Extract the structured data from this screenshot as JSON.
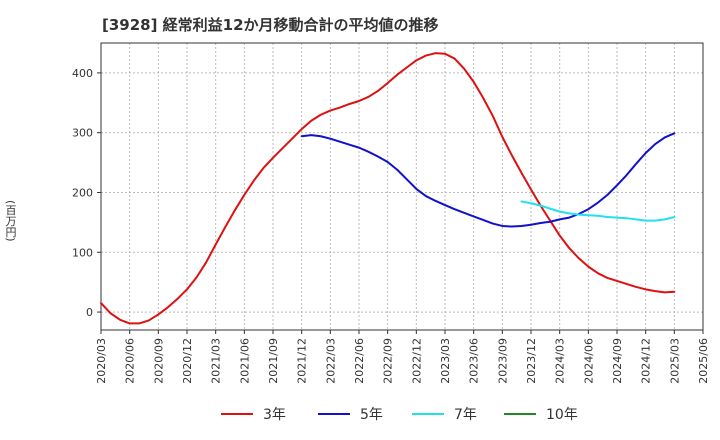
{
  "title": "[3928]  経常利益12か月移動合計の平均値の推移",
  "chart_data": {
    "type": "line",
    "ylabel": "(百万円)",
    "ylim": [
      -30,
      450
    ],
    "yticks": [
      0,
      100,
      200,
      300,
      400
    ],
    "xlim": [
      "2020-03",
      "2025-06"
    ],
    "xticks": [
      "2020/03",
      "2020/06",
      "2020/09",
      "2020/12",
      "2021/03",
      "2021/06",
      "2021/09",
      "2021/12",
      "2022/03",
      "2022/06",
      "2022/09",
      "2022/12",
      "2023/03",
      "2023/06",
      "2023/09",
      "2023/12",
      "2024/03",
      "2024/06",
      "2024/09",
      "2024/12",
      "2025/03",
      "2025/06"
    ],
    "grid": true,
    "legend_position": "bottom",
    "series": [
      {
        "name": "3年",
        "color": "#dd1111",
        "points": [
          [
            "2020-03",
            15
          ],
          [
            "2020-04",
            -2
          ],
          [
            "2020-05",
            -13
          ],
          [
            "2020-06",
            -19
          ],
          [
            "2020-07",
            -19
          ],
          [
            "2020-08",
            -14
          ],
          [
            "2020-09",
            -4
          ],
          [
            "2020-10",
            8
          ],
          [
            "2020-11",
            22
          ],
          [
            "2020-12",
            38
          ],
          [
            "2021-01",
            58
          ],
          [
            "2021-02",
            83
          ],
          [
            "2021-03",
            113
          ],
          [
            "2021-04",
            142
          ],
          [
            "2021-05",
            170
          ],
          [
            "2021-06",
            196
          ],
          [
            "2021-07",
            220
          ],
          [
            "2021-08",
            241
          ],
          [
            "2021-09",
            258
          ],
          [
            "2021-10",
            274
          ],
          [
            "2021-11",
            290
          ],
          [
            "2021-12",
            306
          ],
          [
            "2022-01",
            320
          ],
          [
            "2022-02",
            330
          ],
          [
            "2022-03",
            337
          ],
          [
            "2022-04",
            342
          ],
          [
            "2022-05",
            348
          ],
          [
            "2022-06",
            353
          ],
          [
            "2022-07",
            360
          ],
          [
            "2022-08",
            370
          ],
          [
            "2022-09",
            383
          ],
          [
            "2022-10",
            397
          ],
          [
            "2022-11",
            409
          ],
          [
            "2022-12",
            421
          ],
          [
            "2023-01",
            429
          ],
          [
            "2023-02",
            433
          ],
          [
            "2023-03",
            432
          ],
          [
            "2023-04",
            424
          ],
          [
            "2023-05",
            407
          ],
          [
            "2023-06",
            385
          ],
          [
            "2023-07",
            358
          ],
          [
            "2023-08",
            328
          ],
          [
            "2023-09",
            293
          ],
          [
            "2023-10",
            262
          ],
          [
            "2023-11",
            233
          ],
          [
            "2023-12",
            205
          ],
          [
            "2024-01",
            178
          ],
          [
            "2024-02",
            153
          ],
          [
            "2024-03",
            128
          ],
          [
            "2024-04",
            107
          ],
          [
            "2024-05",
            90
          ],
          [
            "2024-06",
            76
          ],
          [
            "2024-07",
            65
          ],
          [
            "2024-08",
            57
          ],
          [
            "2024-09",
            52
          ],
          [
            "2024-10",
            47
          ],
          [
            "2024-11",
            42
          ],
          [
            "2024-12",
            38
          ],
          [
            "2025-01",
            35
          ],
          [
            "2025-02",
            33
          ],
          [
            "2025-03",
            34
          ]
        ]
      },
      {
        "name": "5年",
        "color": "#1111cc",
        "points": [
          [
            "2021-12",
            294
          ],
          [
            "2022-01",
            296
          ],
          [
            "2022-02",
            294
          ],
          [
            "2022-03",
            290
          ],
          [
            "2022-04",
            285
          ],
          [
            "2022-05",
            280
          ],
          [
            "2022-06",
            275
          ],
          [
            "2022-07",
            268
          ],
          [
            "2022-08",
            260
          ],
          [
            "2022-09",
            251
          ],
          [
            "2022-10",
            238
          ],
          [
            "2022-11",
            222
          ],
          [
            "2022-12",
            206
          ],
          [
            "2023-01",
            194
          ],
          [
            "2023-02",
            186
          ],
          [
            "2023-03",
            179
          ],
          [
            "2023-04",
            172
          ],
          [
            "2023-05",
            166
          ],
          [
            "2023-06",
            160
          ],
          [
            "2023-07",
            154
          ],
          [
            "2023-08",
            148
          ],
          [
            "2023-09",
            144
          ],
          [
            "2023-10",
            143
          ],
          [
            "2023-11",
            144
          ],
          [
            "2023-12",
            146
          ],
          [
            "2024-01",
            149
          ],
          [
            "2024-02",
            151
          ],
          [
            "2024-03",
            155
          ],
          [
            "2024-04",
            158
          ],
          [
            "2024-05",
            164
          ],
          [
            "2024-06",
            172
          ],
          [
            "2024-07",
            183
          ],
          [
            "2024-08",
            196
          ],
          [
            "2024-09",
            212
          ],
          [
            "2024-10",
            229
          ],
          [
            "2024-11",
            248
          ],
          [
            "2024-12",
            266
          ],
          [
            "2025-01",
            281
          ],
          [
            "2025-02",
            292
          ],
          [
            "2025-03",
            299
          ]
        ]
      },
      {
        "name": "7年",
        "color": "#22e0ee",
        "points": [
          [
            "2023-11",
            185
          ],
          [
            "2023-12",
            182
          ],
          [
            "2024-01",
            178
          ],
          [
            "2024-02",
            173
          ],
          [
            "2024-03",
            168
          ],
          [
            "2024-04",
            165
          ],
          [
            "2024-05",
            163
          ],
          [
            "2024-06",
            162
          ],
          [
            "2024-07",
            161
          ],
          [
            "2024-08",
            159
          ],
          [
            "2024-09",
            158
          ],
          [
            "2024-10",
            157
          ],
          [
            "2024-11",
            155
          ],
          [
            "2024-12",
            153
          ],
          [
            "2025-01",
            153
          ],
          [
            "2025-02",
            155
          ],
          [
            "2025-03",
            159
          ]
        ]
      },
      {
        "name": "10年",
        "color": "#228822",
        "points": []
      }
    ]
  }
}
